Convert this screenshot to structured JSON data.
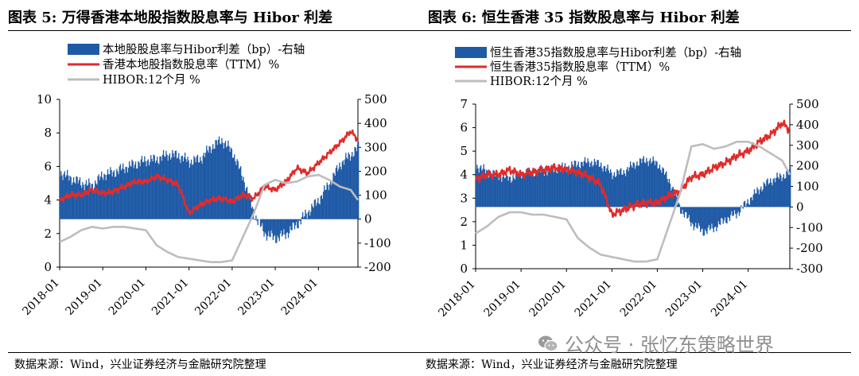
{
  "watermark": {
    "text": "公众号 · 张忆东策略世界",
    "icon": "wechat-icon"
  },
  "colors": {
    "bar": "#1f5aa6",
    "red": "#e12b2b",
    "gray": "#bdbdbd"
  },
  "chart_data": [
    {
      "type": "bar+line",
      "title": "图表 5: 万得香港本地股指数股息率与 Hibor 利差",
      "source": "数据来源：Wind，兴业证券经济与金融研究院整理",
      "x_ticks": [
        "2018-01",
        "2019-01",
        "2020-01",
        "2021-01",
        "2022-01",
        "2023-01",
        "2024-01"
      ],
      "x_range": [
        "2018-01",
        "2024-12"
      ],
      "y_left": {
        "range": [
          0,
          10
        ],
        "ticks": [
          0,
          2,
          4,
          6,
          8,
          10
        ]
      },
      "y_right": {
        "range": [
          -200,
          500
        ],
        "ticks": [
          -200,
          -100,
          0,
          100,
          200,
          300,
          400,
          500
        ]
      },
      "legend": [
        "本地股股息率与Hibor利差（bp）-右轴",
        "香港本地股指数股息率（TTM）%",
        "HIBOR:12个月 %"
      ],
      "series": [
        {
          "name": "本地股股息率与Hibor利差（bp）-右轴",
          "axis": "right",
          "kind": "bar",
          "x": [
            "2018-01",
            "2018-04",
            "2018-07",
            "2018-10",
            "2019-01",
            "2019-04",
            "2019-07",
            "2019-10",
            "2020-01",
            "2020-04",
            "2020-07",
            "2020-10",
            "2021-01",
            "2021-04",
            "2021-07",
            "2021-10",
            "2022-01",
            "2022-04",
            "2022-07",
            "2022-10",
            "2023-01",
            "2023-04",
            "2023-07",
            "2023-10",
            "2024-01",
            "2024-04",
            "2024-07",
            "2024-10",
            "2024-12"
          ],
          "values": [
            195,
            170,
            150,
            140,
            185,
            195,
            215,
            230,
            245,
            250,
            270,
            265,
            240,
            250,
            300,
            330,
            280,
            170,
            20,
            -60,
            -80,
            -60,
            -20,
            30,
            80,
            150,
            230,
            270,
            300
          ]
        },
        {
          "name": "香港本地股指数股息率（TTM）%",
          "axis": "left",
          "kind": "line",
          "x": [
            "2018-01",
            "2018-04",
            "2018-07",
            "2018-10",
            "2019-01",
            "2019-04",
            "2019-07",
            "2019-10",
            "2020-01",
            "2020-04",
            "2020-07",
            "2020-10",
            "2021-01",
            "2021-04",
            "2021-07",
            "2021-10",
            "2022-01",
            "2022-04",
            "2022-07",
            "2022-10",
            "2023-01",
            "2023-04",
            "2023-07",
            "2023-10",
            "2024-01",
            "2024-04",
            "2024-07",
            "2024-10",
            "2024-12"
          ],
          "values": [
            4.0,
            4.3,
            4.3,
            4.6,
            4.4,
            4.5,
            4.8,
            5.1,
            5.1,
            5.4,
            5.2,
            4.9,
            3.2,
            3.7,
            4.0,
            4.1,
            3.9,
            4.3,
            4.1,
            4.8,
            4.6,
            5.1,
            5.9,
            5.6,
            6.2,
            6.8,
            7.4,
            8.1,
            7.6
          ]
        },
        {
          "name": "HIBOR:12个月 %",
          "axis": "left",
          "kind": "line",
          "x": [
            "2018-01",
            "2018-04",
            "2018-07",
            "2018-10",
            "2019-01",
            "2019-04",
            "2019-07",
            "2019-10",
            "2020-01",
            "2020-04",
            "2020-07",
            "2020-10",
            "2021-01",
            "2021-04",
            "2021-07",
            "2021-10",
            "2022-01",
            "2022-04",
            "2022-07",
            "2022-10",
            "2023-01",
            "2023-04",
            "2023-07",
            "2023-10",
            "2024-01",
            "2024-04",
            "2024-07",
            "2024-10",
            "2024-12"
          ],
          "values": [
            1.5,
            1.8,
            2.2,
            2.4,
            2.3,
            2.4,
            2.4,
            2.3,
            2.2,
            1.3,
            0.9,
            0.6,
            0.5,
            0.4,
            0.3,
            0.3,
            0.4,
            1.8,
            3.2,
            4.9,
            5.2,
            5.0,
            5.1,
            5.4,
            5.5,
            5.2,
            4.8,
            4.6,
            4.0
          ]
        }
      ]
    },
    {
      "type": "bar+line",
      "title": "图表 6: 恒生香港 35 指数股息率与 Hibor 利差",
      "source": "数据来源：Wind，兴业证券经济与金融研究院整理",
      "x_ticks": [
        "2018-01",
        "2019-01",
        "2020-01",
        "2021-01",
        "2022-01",
        "2023-01",
        "2024-01"
      ],
      "x_range": [
        "2018-01",
        "2024-12"
      ],
      "y_left": {
        "range": [
          0,
          7
        ],
        "ticks": [
          0,
          1,
          2,
          3,
          4,
          5,
          6,
          7
        ]
      },
      "y_right": {
        "range": [
          -300,
          500
        ],
        "ticks": [
          -300,
          -200,
          -100,
          0,
          100,
          200,
          300,
          400,
          500
        ]
      },
      "legend": [
        "恒生香港35指数股息率与Hibor利差（bp）-右轴",
        "恒生香港35指数股息率（TTM）%",
        "HIBOR:12个月 %"
      ],
      "series": [
        {
          "name": "恒生香港35指数股息率与Hibor利差（bp）-右轴",
          "axis": "right",
          "kind": "bar",
          "x": [
            "2018-01",
            "2018-04",
            "2018-07",
            "2018-10",
            "2019-01",
            "2019-04",
            "2019-07",
            "2019-10",
            "2020-01",
            "2020-04",
            "2020-07",
            "2020-10",
            "2021-01",
            "2021-04",
            "2021-07",
            "2021-10",
            "2022-01",
            "2022-04",
            "2022-07",
            "2022-10",
            "2023-01",
            "2023-04",
            "2023-07",
            "2023-10",
            "2024-01",
            "2024-04",
            "2024-07",
            "2024-10",
            "2024-12"
          ],
          "values": [
            200,
            170,
            150,
            140,
            160,
            170,
            175,
            185,
            195,
            210,
            220,
            205,
            160,
            170,
            210,
            230,
            210,
            130,
            -10,
            -80,
            -120,
            -100,
            -60,
            -30,
            30,
            90,
            130,
            150,
            170
          ]
        },
        {
          "name": "恒生香港35指数股息率（TTM）%",
          "axis": "left",
          "kind": "line",
          "x": [
            "2018-01",
            "2018-04",
            "2018-07",
            "2018-10",
            "2019-01",
            "2019-04",
            "2019-07",
            "2019-10",
            "2020-01",
            "2020-04",
            "2020-07",
            "2020-10",
            "2021-01",
            "2021-04",
            "2021-07",
            "2021-10",
            "2022-01",
            "2022-04",
            "2022-07",
            "2022-10",
            "2023-01",
            "2023-04",
            "2023-07",
            "2023-10",
            "2024-01",
            "2024-04",
            "2024-07",
            "2024-10",
            "2024-12"
          ],
          "values": [
            3.8,
            4.0,
            4.0,
            4.2,
            4.0,
            4.1,
            4.2,
            4.3,
            4.2,
            4.1,
            3.9,
            3.6,
            2.3,
            2.5,
            2.7,
            2.8,
            2.8,
            3.1,
            3.3,
            3.9,
            4.0,
            4.3,
            4.5,
            4.8,
            5.0,
            5.4,
            5.7,
            6.2,
            5.9
          ]
        },
        {
          "name": "HIBOR:12个月 %",
          "axis": "left",
          "kind": "line",
          "x": [
            "2018-01",
            "2018-04",
            "2018-07",
            "2018-10",
            "2019-01",
            "2019-04",
            "2019-07",
            "2019-10",
            "2020-01",
            "2020-04",
            "2020-07",
            "2020-10",
            "2021-01",
            "2021-04",
            "2021-07",
            "2021-10",
            "2022-01",
            "2022-04",
            "2022-07",
            "2022-10",
            "2023-01",
            "2023-04",
            "2023-07",
            "2023-10",
            "2024-01",
            "2024-04",
            "2024-07",
            "2024-10",
            "2024-12"
          ],
          "values": [
            1.5,
            1.8,
            2.2,
            2.4,
            2.4,
            2.3,
            2.3,
            2.2,
            2.1,
            1.3,
            0.9,
            0.6,
            0.5,
            0.4,
            0.3,
            0.3,
            0.4,
            1.8,
            3.2,
            5.2,
            5.3,
            5.1,
            5.2,
            5.4,
            5.4,
            5.2,
            4.9,
            4.6,
            4.0
          ]
        }
      ]
    }
  ]
}
